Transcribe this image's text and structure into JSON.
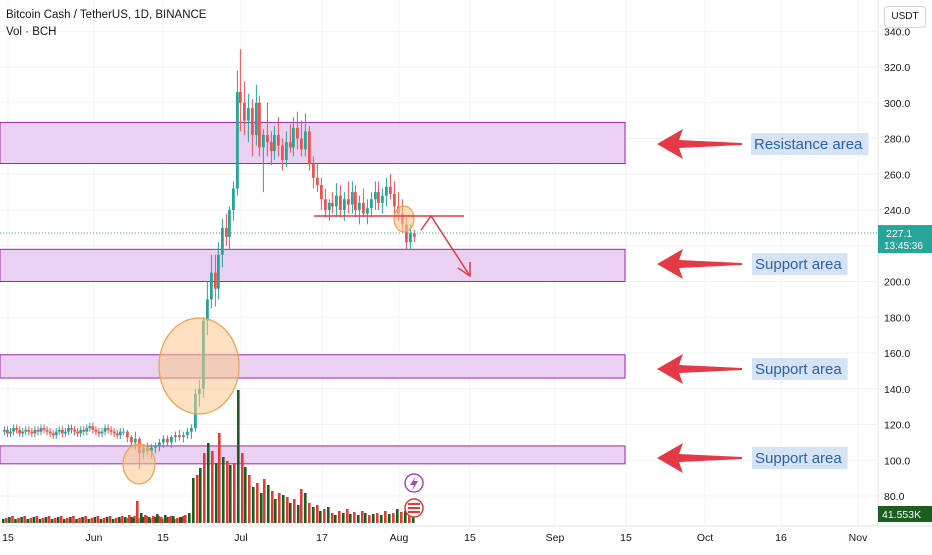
{
  "header": {
    "symbol_line": "Bitcoin Cash / TetherUS, 1D, BINANCE",
    "volume_line": "Vol · BCH",
    "currency_badge": "USDT"
  },
  "price_tag": {
    "price": "227.1",
    "countdown": "13:45:36"
  },
  "volume_tag": "41.553K",
  "colors": {
    "up": "#26a69a",
    "down": "#ef5350",
    "vol_up": "#1b5e20",
    "vol_down": "#e53935",
    "zone_fill": "#e8c9ef",
    "zone_border": "#9c27b0",
    "arrow": "#e53946",
    "label_bg": "#d6e3f5"
  },
  "chart_data": {
    "type": "candlestick",
    "y_axis": {
      "ticks": [
        "340.0",
        "320.0",
        "300.0",
        "280.0",
        "260.0",
        "240.0",
        "220.0",
        "200.0",
        "180.0",
        "160.0",
        "140.0",
        "120.0",
        "100.0",
        "80.0"
      ],
      "range": [
        75,
        345
      ]
    },
    "x_axis": {
      "labels": [
        "15",
        "Jun",
        "15",
        "Jul",
        "17",
        "Aug",
        "15",
        "Sep",
        "15",
        "Oct",
        "16",
        "Nov"
      ]
    },
    "zones": [
      {
        "label": "Resistance area",
        "low": 266,
        "high": 289
      },
      {
        "label": "Support area",
        "low": 200,
        "high": 218
      },
      {
        "label": "Support area",
        "low": 146,
        "high": 159
      },
      {
        "label": "Support area",
        "low": 98,
        "high": 108
      }
    ],
    "current_price": 227.1
  },
  "indicator_icons": [
    "lightning-icon",
    "us-flag-icon"
  ]
}
